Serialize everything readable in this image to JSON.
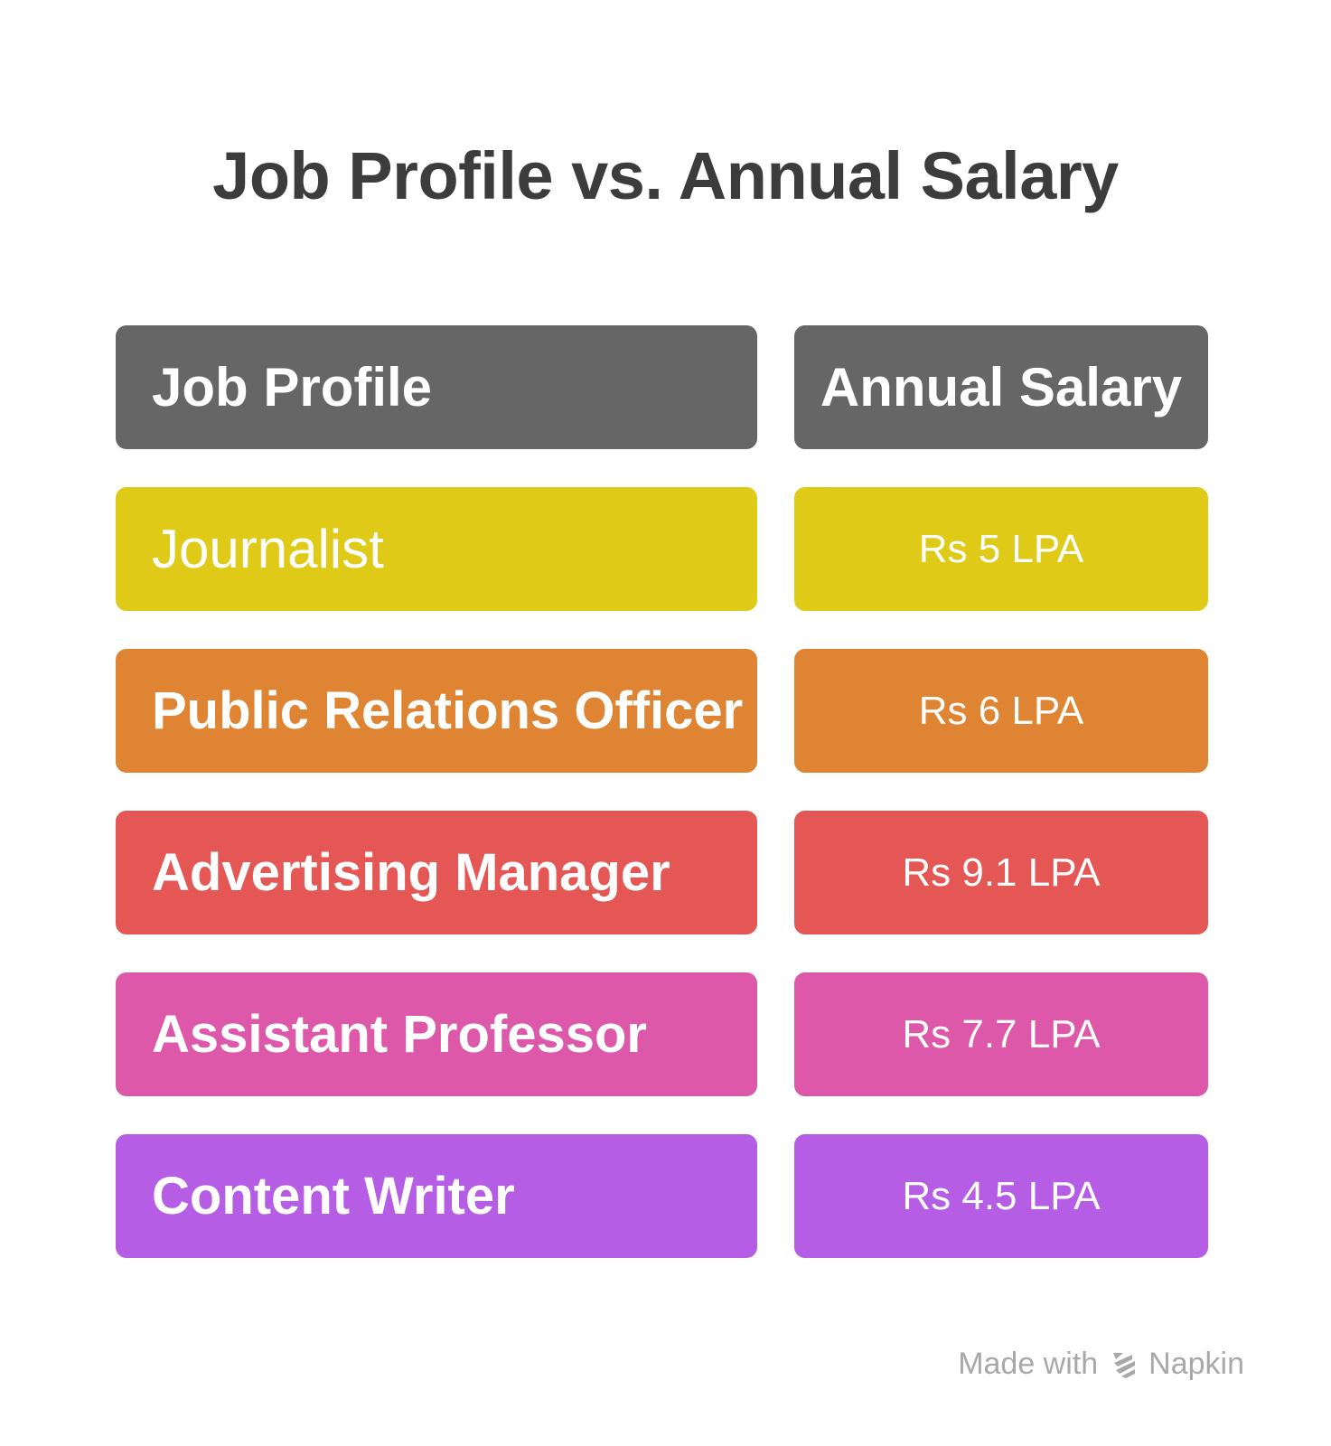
{
  "chart_data": {
    "type": "table",
    "title": "Job Profile vs. Annual Salary",
    "columns": [
      "Job Profile",
      "Annual Salary"
    ],
    "rows": [
      {
        "job": "Journalist",
        "salary": "Rs 5 LPA",
        "color": "#dfcb17"
      },
      {
        "job": "Public Relations Officer",
        "salary": "Rs 6 LPA",
        "color": "#de8432"
      },
      {
        "job": "Advertising Manager",
        "salary": "Rs 9.1 LPA",
        "color": "#e45755"
      },
      {
        "job": "Assistant Professor",
        "salary": "Rs 7.7 LPA",
        "color": "#dd58a8"
      },
      {
        "job": "Content Writer",
        "salary": "Rs 4.5 LPA",
        "color": "#b55de4"
      }
    ],
    "header_color": "#666666"
  },
  "watermark": {
    "made_with": "Made with",
    "brand": "Napkin",
    "icon": "napkin-logo-icon"
  }
}
